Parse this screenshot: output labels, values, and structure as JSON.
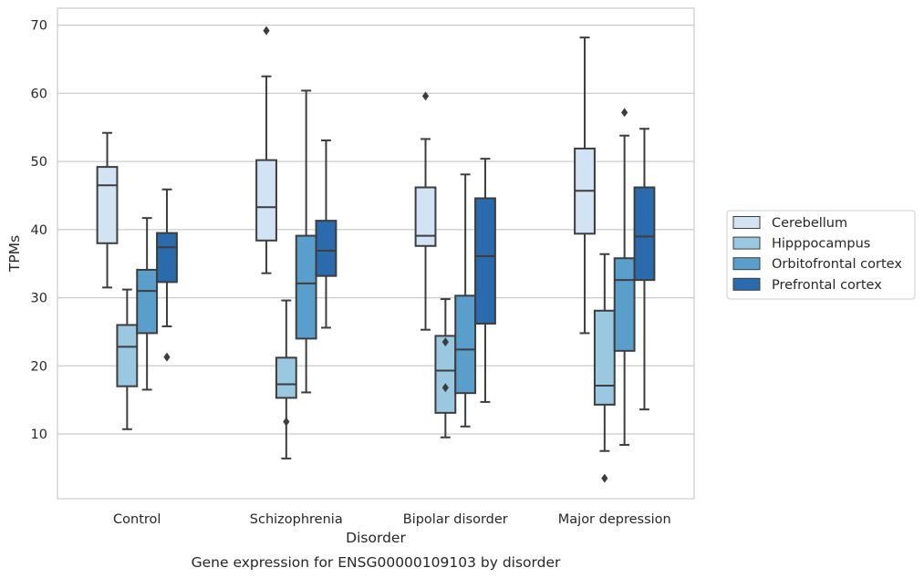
{
  "chart_data": {
    "type": "box",
    "title": "",
    "caption": "Gene expression for ENSG00000109103 by disorder",
    "xlabel": "Disorder",
    "ylabel": "TPMs",
    "ylim": [
      0.5,
      72.5
    ],
    "yticks": [
      10,
      20,
      30,
      40,
      50,
      60,
      70
    ],
    "grid": "horizontal",
    "legend_position": "right",
    "categories": [
      "Control",
      "Schizophrenia",
      "Bipolar disorder",
      "Major depression"
    ],
    "series": [
      {
        "name": "Cerebellum",
        "color": "#d2e3f3",
        "boxes": [
          {
            "min": 31.5,
            "q1": 38.0,
            "median": 46.5,
            "q3": 49.2,
            "max": 54.2,
            "outliers": []
          },
          {
            "min": 33.6,
            "q1": 38.4,
            "median": 43.3,
            "q3": 50.2,
            "max": 62.5,
            "outliers": [
              69.2
            ]
          },
          {
            "min": 25.3,
            "q1": 37.6,
            "median": 39.1,
            "q3": 46.2,
            "max": 53.3,
            "outliers": [
              59.6
            ]
          },
          {
            "min": 24.8,
            "q1": 39.4,
            "median": 45.7,
            "q3": 51.9,
            "max": 68.2,
            "outliers": []
          }
        ]
      },
      {
        "name": "Hipppocampus",
        "color": "#9ac8e0",
        "boxes": [
          {
            "min": 10.7,
            "q1": 17.0,
            "median": 22.8,
            "q3": 26.0,
            "max": 31.2,
            "outliers": []
          },
          {
            "min": 6.4,
            "q1": 15.3,
            "median": 17.3,
            "q3": 21.2,
            "max": 29.6,
            "outliers": [
              11.8
            ]
          },
          {
            "min": 9.5,
            "q1": 13.1,
            "median": 19.3,
            "q3": 24.4,
            "max": 29.8,
            "outliers": [
              23.5,
              16.8
            ]
          },
          {
            "min": 7.5,
            "q1": 14.3,
            "median": 17.1,
            "q3": 28.1,
            "max": 36.4,
            "outliers": [
              3.5
            ]
          }
        ]
      },
      {
        "name": "Orbitofrontal cortex",
        "color": "#5a9fcc",
        "boxes": [
          {
            "min": 16.5,
            "q1": 24.8,
            "median": 31.0,
            "q3": 34.1,
            "max": 41.7,
            "outliers": []
          },
          {
            "min": 16.1,
            "q1": 24.0,
            "median": 32.1,
            "q3": 39.1,
            "max": 60.4,
            "outliers": []
          },
          {
            "min": 11.1,
            "q1": 16.0,
            "median": 22.4,
            "q3": 30.3,
            "max": 48.1,
            "outliers": []
          },
          {
            "min": 8.4,
            "q1": 22.2,
            "median": 32.6,
            "q3": 35.8,
            "max": 53.8,
            "outliers": [
              57.2
            ]
          }
        ]
      },
      {
        "name": "Prefrontal cortex",
        "color": "#2b6aac",
        "boxes": [
          {
            "min": 25.8,
            "q1": 32.3,
            "median": 37.4,
            "q3": 39.5,
            "max": 45.9,
            "outliers": [
              21.3
            ]
          },
          {
            "min": 25.6,
            "q1": 33.2,
            "median": 36.9,
            "q3": 41.3,
            "max": 53.1,
            "outliers": []
          },
          {
            "min": 14.7,
            "q1": 26.2,
            "median": 36.1,
            "q3": 44.6,
            "max": 50.4,
            "outliers": []
          },
          {
            "min": 13.6,
            "q1": 32.6,
            "median": 39.0,
            "q3": 46.2,
            "max": 54.8,
            "outliers": []
          }
        ]
      }
    ]
  }
}
